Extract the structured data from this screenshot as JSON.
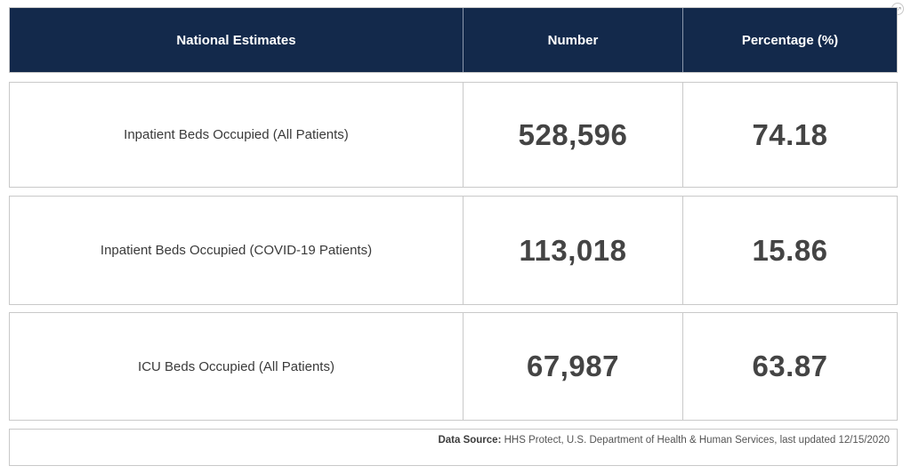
{
  "table": {
    "headers": [
      "National Estimates",
      "Number",
      "Percentage (%)"
    ],
    "rows": [
      {
        "label": "Inpatient Beds Occupied (All Patients)",
        "number": "528,596",
        "percentage": "74.18"
      },
      {
        "label": "Inpatient Beds Occupied (COVID-19 Patients)",
        "number": "113,018",
        "percentage": "15.86"
      },
      {
        "label": "ICU Beds Occupied (All Patients)",
        "number": "67,987",
        "percentage": "63.87"
      }
    ]
  },
  "footer": {
    "source_label": "Data Source:",
    "source_text": "HHS Protect, U.S. Department of Health & Human Services, last updated 12/15/2020"
  },
  "icons": {
    "expand": "expand-icon"
  },
  "colors": {
    "header_bg": "#13294b",
    "header_text": "#ffffff",
    "border": "#c9c9c9"
  }
}
